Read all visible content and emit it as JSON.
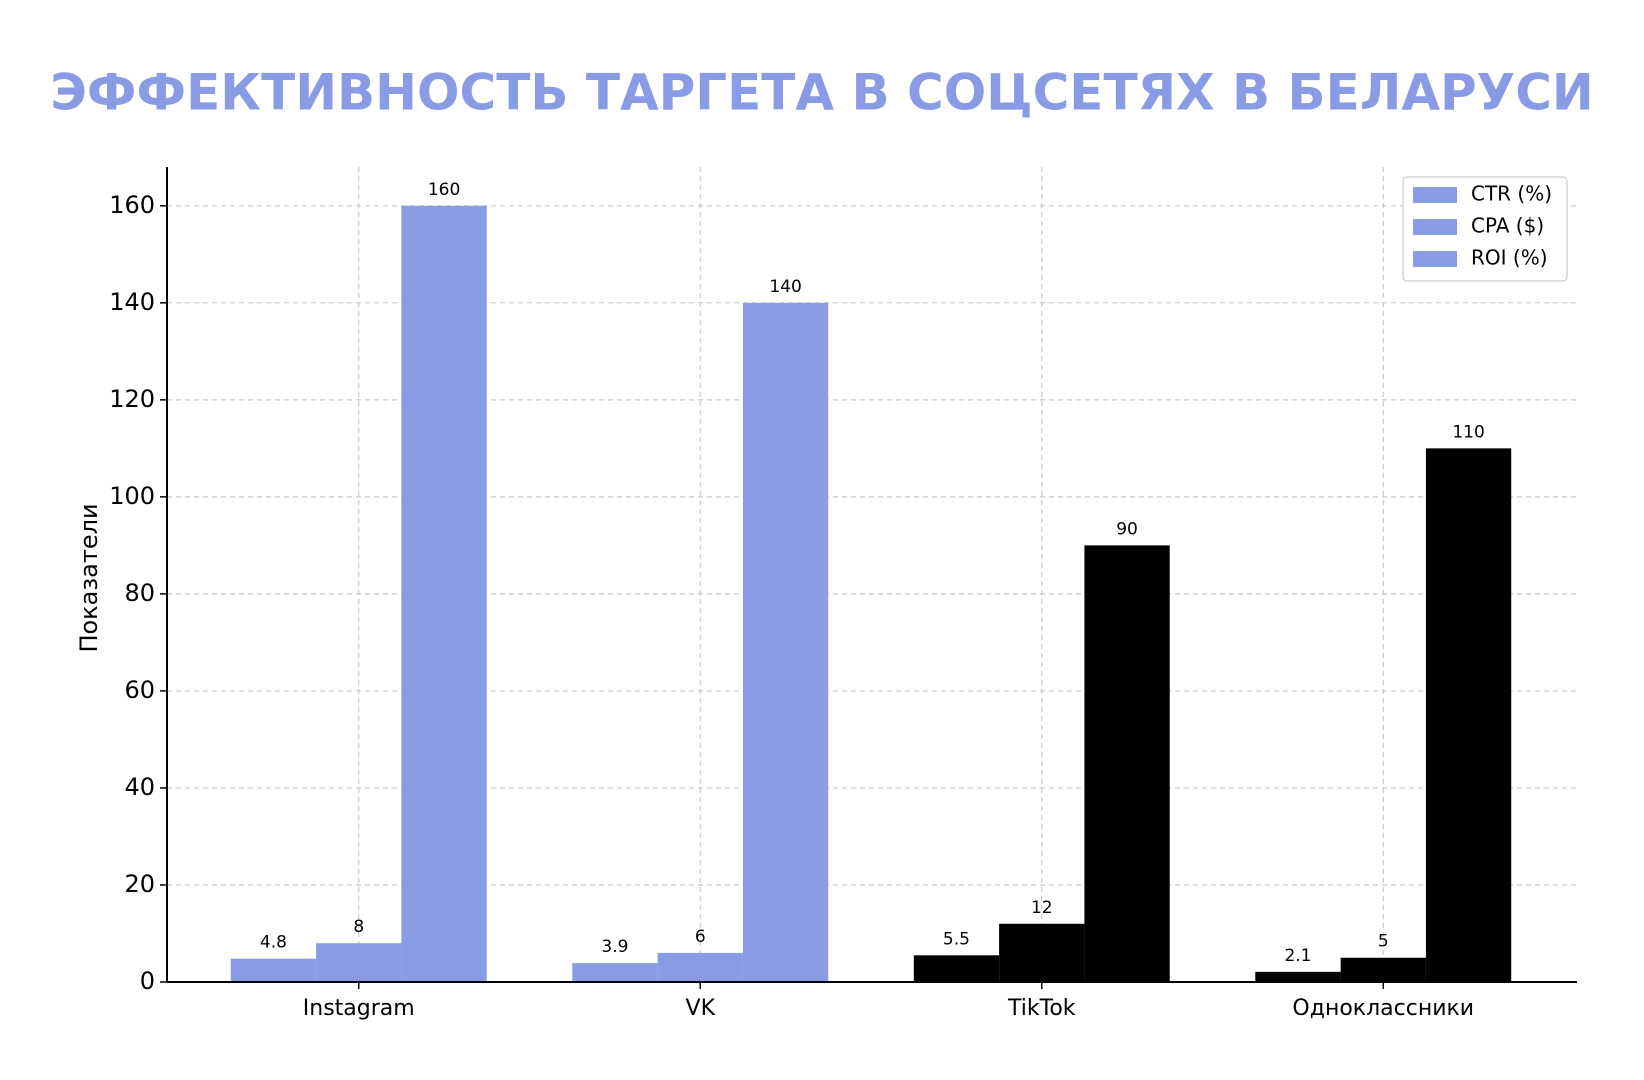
{
  "chart_data": {
    "type": "bar",
    "title": "ЭФФЕКТИВНОСТЬ ТАРГЕТА В СОЦСЕТЯХ В БЕЛАРУСИ",
    "y_label": "Показатели",
    "categories": [
      "Instagram",
      "VK",
      "TikTok",
      "Одноклассники"
    ],
    "category_colors": [
      "#8a9be6",
      "#8a9be6",
      "#000000",
      "#000000"
    ],
    "series": [
      {
        "name": "CTR (%)",
        "color": "#8a9be6",
        "values": [
          4.8,
          3.9,
          5.5,
          2.1
        ]
      },
      {
        "name": "CPA ($)",
        "color": "#8a9be6",
        "values": [
          8,
          6,
          12,
          5
        ]
      },
      {
        "name": "ROI (%)",
        "color": "#8a9be6",
        "values": [
          160,
          140,
          90,
          110
        ]
      }
    ],
    "ylim": [
      0,
      168
    ],
    "yticks": [
      0,
      20,
      40,
      60,
      80,
      100,
      120,
      140,
      160
    ],
    "grid": true,
    "legend": "upper right"
  }
}
